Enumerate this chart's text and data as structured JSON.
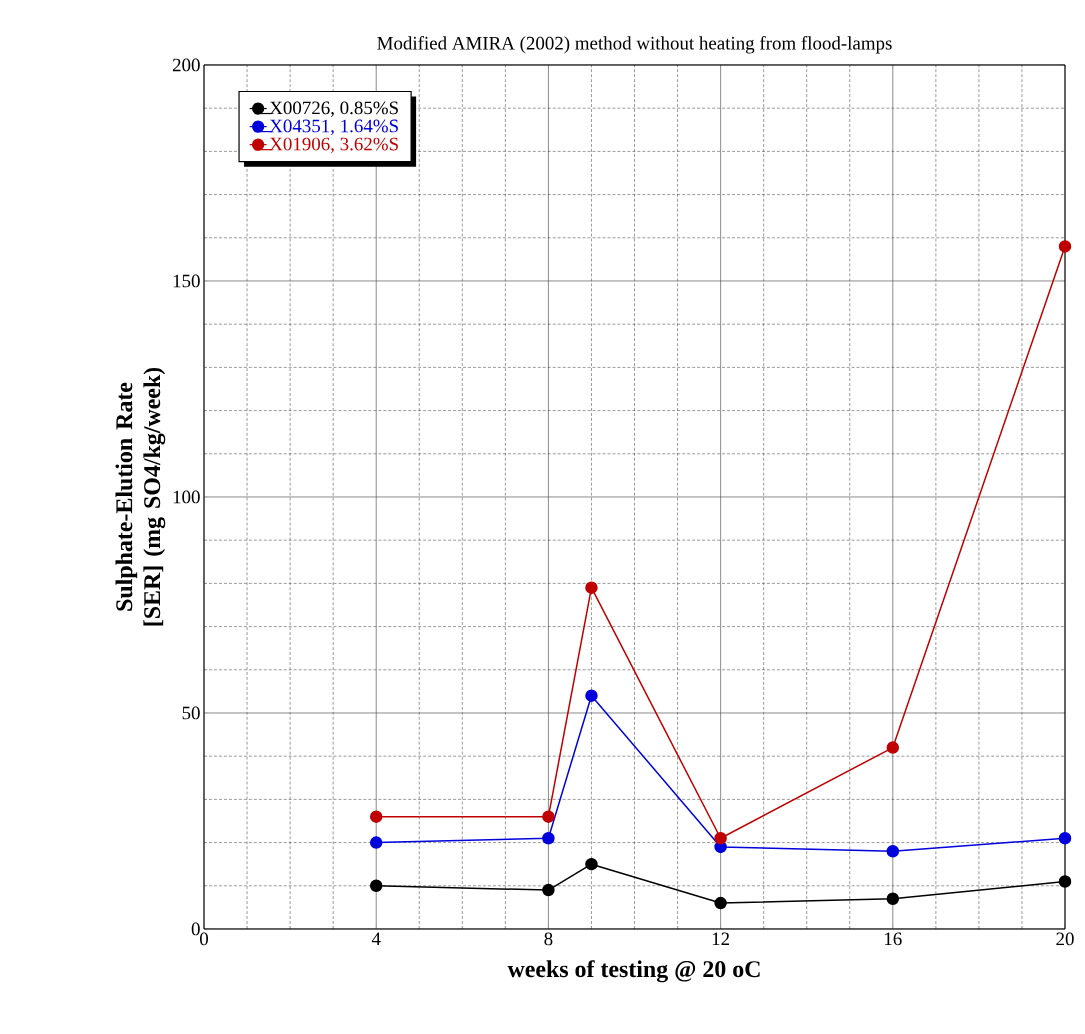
{
  "chart_data": {
    "type": "line",
    "title": "Modified AMIRA (2002) method without heating from flood-lamps",
    "xlabel": "weeks of testing @ 20 oC",
    "ylabel": "Sulphate-Elution Rate [SER] (mg SO4/kg/week)",
    "x": [
      4,
      8,
      9,
      12,
      16,
      20
    ],
    "series": [
      {
        "name": "X00726, 0.85%S",
        "color": "#000000",
        "values": [
          10,
          9,
          15,
          6,
          7,
          11
        ]
      },
      {
        "name": "X04351, 1.64%S",
        "color": "#0000dd",
        "values": [
          20,
          21,
          54,
          19,
          18,
          21
        ]
      },
      {
        "name": "X01906, 3.62%S",
        "color": "#c00000",
        "values": [
          26,
          26,
          79,
          21,
          42,
          158
        ]
      }
    ],
    "xlim": [
      0,
      20
    ],
    "xticks": [
      0,
      4,
      8,
      12,
      16,
      20
    ],
    "ylim": [
      0,
      200
    ],
    "yticks": [
      0,
      50,
      100,
      150,
      200
    ],
    "grid": true,
    "legend": "top left",
    "marker": "circle",
    "line_style": "solid"
  }
}
